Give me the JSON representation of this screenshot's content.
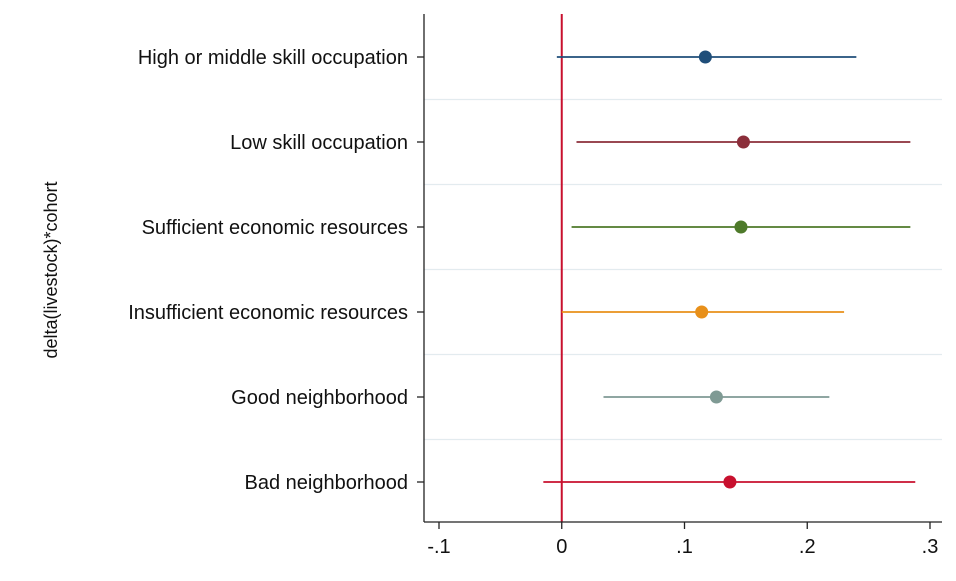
{
  "chart_data": {
    "type": "scatter",
    "subtype": "coefficient-plot-with-confidence-intervals",
    "orientation": "horizontal",
    "ylabel": "delta(livestock)*cohort",
    "xlabel": "",
    "xlim": [
      -0.1,
      0.3
    ],
    "x_ticks": [
      -0.1,
      0,
      0.1,
      0.2,
      0.3
    ],
    "x_tick_labels": [
      "-.1",
      "0",
      ".1",
      ".2",
      ".3"
    ],
    "reference_line": {
      "x": 0,
      "color": "#c8102e"
    },
    "grid": true,
    "legend": "none",
    "series": [
      {
        "category": "High or middle skill occupation",
        "estimate": 0.117,
        "ci_low": -0.004,
        "ci_high": 0.24,
        "color": "#1f4e79"
      },
      {
        "category": "Low skill occupation",
        "estimate": 0.148,
        "ci_low": 0.012,
        "ci_high": 0.284,
        "color": "#8b2e3a"
      },
      {
        "category": "Sufficient economic resources",
        "estimate": 0.146,
        "ci_low": 0.008,
        "ci_high": 0.284,
        "color": "#4e7a2a"
      },
      {
        "category": "Insufficient economic resources",
        "estimate": 0.114,
        "ci_low": 0.0,
        "ci_high": 0.23,
        "color": "#e8901a"
      },
      {
        "category": "Good neighborhood",
        "estimate": 0.126,
        "ci_low": 0.034,
        "ci_high": 0.218,
        "color": "#7f9a94"
      },
      {
        "category": "Bad neighborhood",
        "estimate": 0.137,
        "ci_low": -0.015,
        "ci_high": 0.288,
        "color": "#c8102e"
      }
    ]
  }
}
